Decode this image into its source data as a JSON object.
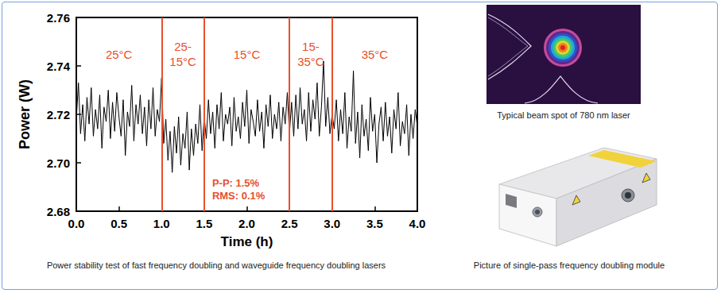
{
  "chart_data": {
    "type": "line",
    "x_label": "Time (h)",
    "y_label": "Power (W)",
    "color": "#000000",
    "x": [
      0,
      0.025,
      0.05,
      0.075,
      0.1,
      0.125,
      0.15,
      0.175,
      0.2,
      0.225,
      0.25,
      0.275,
      0.3,
      0.325,
      0.35,
      0.375,
      0.4,
      0.425,
      0.45,
      0.475,
      0.5,
      0.525,
      0.55,
      0.575,
      0.6,
      0.625,
      0.65,
      0.675,
      0.7,
      0.725,
      0.75,
      0.775,
      0.8,
      0.825,
      0.85,
      0.875,
      0.9,
      0.925,
      0.95,
      0.975,
      1,
      1.025,
      1.05,
      1.075,
      1.1,
      1.125,
      1.15,
      1.175,
      1.2,
      1.225,
      1.25,
      1.275,
      1.3,
      1.325,
      1.35,
      1.375,
      1.4,
      1.425,
      1.45,
      1.475,
      1.5,
      1.525,
      1.55,
      1.575,
      1.6,
      1.625,
      1.65,
      1.675,
      1.7,
      1.725,
      1.75,
      1.775,
      1.8,
      1.825,
      1.85,
      1.875,
      1.9,
      1.925,
      1.95,
      1.975,
      2,
      2.025,
      2.05,
      2.075,
      2.1,
      2.125,
      2.15,
      2.175,
      2.2,
      2.225,
      2.25,
      2.275,
      2.3,
      2.325,
      2.35,
      2.375,
      2.4,
      2.425,
      2.45,
      2.475,
      2.5,
      2.525,
      2.55,
      2.575,
      2.6,
      2.625,
      2.65,
      2.675,
      2.7,
      2.725,
      2.75,
      2.775,
      2.8,
      2.825,
      2.85,
      2.875,
      2.9,
      2.925,
      2.95,
      2.975,
      3,
      3.025,
      3.05,
      3.075,
      3.1,
      3.125,
      3.15,
      3.175,
      3.2,
      3.225,
      3.25,
      3.275,
      3.3,
      3.325,
      3.35,
      3.375,
      3.4,
      3.425,
      3.45,
      3.475,
      3.5,
      3.525,
      3.55,
      3.575,
      3.6,
      3.625,
      3.65,
      3.675,
      3.7,
      3.725,
      3.75,
      3.775,
      3.8,
      3.825,
      3.85,
      3.875,
      3.9,
      3.925,
      3.95,
      3.975,
      4
    ],
    "values": [
      2.718,
      2.733,
      2.712,
      2.724,
      2.709,
      2.727,
      2.716,
      2.731,
      2.711,
      2.722,
      2.714,
      2.728,
      2.706,
      2.723,
      2.717,
      2.73,
      2.71,
      2.725,
      2.713,
      2.729,
      2.719,
      2.711,
      2.726,
      2.703,
      2.721,
      2.715,
      2.732,
      2.709,
      2.724,
      2.716,
      2.728,
      2.712,
      2.723,
      2.707,
      2.726,
      2.714,
      2.731,
      2.711,
      2.722,
      2.717,
      2.735,
      2.708,
      2.718,
      2.701,
      2.713,
      2.696,
      2.715,
      2.704,
      2.719,
      2.699,
      2.712,
      2.706,
      2.721,
      2.697,
      2.714,
      2.703,
      2.716,
      2.708,
      2.724,
      2.705,
      2.719,
      2.71,
      2.726,
      2.712,
      2.721,
      2.706,
      2.724,
      2.714,
      2.729,
      2.709,
      2.72,
      2.716,
      2.723,
      2.707,
      2.727,
      2.713,
      2.719,
      2.71,
      2.725,
      2.715,
      2.73,
      2.708,
      2.722,
      2.717,
      2.711,
      2.726,
      2.713,
      2.721,
      2.706,
      2.724,
      2.715,
      2.728,
      2.71,
      2.72,
      2.714,
      2.725,
      2.709,
      2.723,
      2.716,
      2.729,
      2.712,
      2.725,
      2.711,
      2.728,
      2.714,
      2.731,
      2.716,
      2.722,
      2.709,
      2.729,
      2.713,
      2.726,
      2.718,
      2.733,
      2.711,
      2.723,
      2.742,
      2.715,
      2.727,
      2.712,
      2.72,
      2.714,
      2.726,
      2.709,
      2.722,
      2.712,
      2.729,
      2.706,
      2.719,
      2.713,
      2.738,
      2.708,
      2.721,
      2.702,
      2.724,
      2.711,
      2.718,
      2.705,
      2.727,
      2.713,
      2.72,
      2.7,
      2.716,
      2.723,
      2.709,
      2.725,
      2.711,
      2.719,
      2.704,
      2.722,
      2.714,
      2.729,
      2.707,
      2.717,
      2.712,
      2.724,
      2.703,
      2.72,
      2.71,
      2.722,
      2.715
    ],
    "xlim": [
      0,
      4
    ],
    "xticks": [
      {
        "value": 0,
        "label": "0.0"
      },
      {
        "value": 0.5,
        "label": "0.5"
      },
      {
        "value": 1,
        "label": "1.0"
      },
      {
        "value": 1.5,
        "label": "1.5"
      },
      {
        "value": 2,
        "label": "2.0"
      },
      {
        "value": 2.5,
        "label": "2.5"
      },
      {
        "value": 3,
        "label": "3.0"
      },
      {
        "value": 3.5,
        "label": "3.5"
      },
      {
        "value": 4,
        "label": "4.0"
      }
    ],
    "ylim": [
      2.68,
      2.76
    ],
    "yticks": [
      2.68,
      {
        "value": 2.7,
        "label": "2.70"
      },
      2.72,
      2.74,
      2.76
    ],
    "grid": false,
    "vlines": {
      "values": [
        1,
        1.5,
        2.5,
        3
      ],
      "color": "#e8502e"
    },
    "regions": [
      {
        "label": "25°C",
        "from": 0,
        "to": 1
      },
      {
        "label": "25-15°C",
        "from": 1,
        "to": 1.5
      },
      {
        "label": "15°C",
        "from": 1.5,
        "to": 2.5
      },
      {
        "label": "15-35°C",
        "from": 2.5,
        "to": 3
      },
      {
        "label": "35°C",
        "from": 3,
        "to": 4
      }
    ],
    "annotations": [
      "P-P: 1.5%",
      "RMS: 0.1%"
    ],
    "caption": "Power stability test of fast frequency doubling and waveguide frequency doubling lasers"
  },
  "images": [
    {
      "caption": "Typical beam spot of 780 nm laser"
    },
    {
      "caption": "Picture of single-pass frequency doubling module"
    }
  ]
}
